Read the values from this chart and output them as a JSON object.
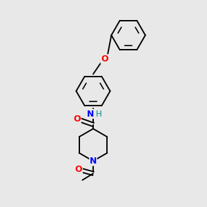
{
  "background_color": "#e8e8e8",
  "bond_color": "#000000",
  "atom_colors": {
    "O": "#ff0000",
    "N_amide": "#0000ff",
    "N_pipe": "#0000ff",
    "H": "#008b8b"
  },
  "figsize": [
    3.0,
    3.0
  ],
  "dpi": 100,
  "xlim": [
    0,
    10
  ],
  "ylim": [
    0,
    10
  ]
}
